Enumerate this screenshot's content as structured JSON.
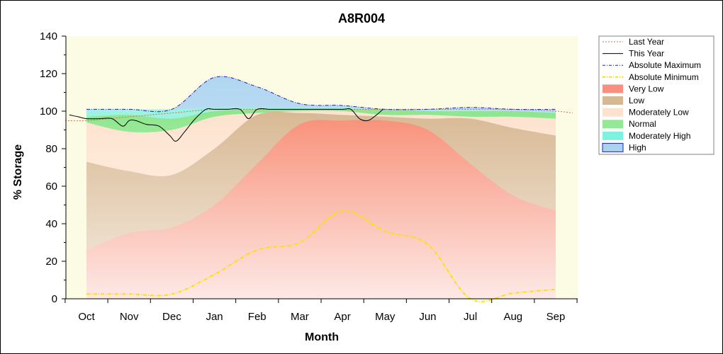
{
  "chart_data": {
    "type": "area",
    "title": "A8R004",
    "xlabel": "Month",
    "ylabel": "% Storage",
    "ylim": [
      0,
      140
    ],
    "yticks": [
      0,
      20,
      40,
      60,
      80,
      100,
      120,
      140
    ],
    "categories": [
      "Oct",
      "Nov",
      "Dec",
      "Jan",
      "Feb",
      "Mar",
      "Apr",
      "May",
      "Jun",
      "Jul",
      "Aug",
      "Sep"
    ],
    "x": [
      0,
      1,
      2,
      3,
      4,
      5,
      6,
      7,
      8,
      9,
      10,
      11
    ],
    "bands": {
      "very_low_top": [
        26,
        35,
        38,
        50,
        72,
        93,
        95,
        95,
        90,
        72,
        55,
        47
      ],
      "low_top": [
        73,
        68,
        66,
        80,
        98,
        99,
        98,
        97,
        96,
        96,
        91,
        87
      ],
      "moderately_low_top": [
        94,
        89,
        90,
        97,
        99,
        100,
        100,
        98,
        98,
        97,
        97,
        96
      ],
      "normal_top": [
        97,
        98,
        96,
        100,
        101,
        101,
        101,
        101,
        100,
        100,
        100,
        99
      ],
      "moderately_high_top": [
        101,
        101,
        101,
        102,
        102,
        102,
        102,
        101,
        101,
        101,
        100,
        100
      ],
      "high_top": [
        101,
        101,
        101,
        118,
        113,
        104,
        103,
        101,
        101,
        102,
        101,
        101
      ]
    },
    "series": [
      {
        "name": "Last Year",
        "x": [
          -0.5,
          0,
          1,
          2,
          3,
          4,
          5,
          6,
          7,
          8,
          9,
          10,
          11,
          11.4
        ],
        "values": [
          95,
          95,
          97,
          99,
          101,
          101,
          101,
          101,
          101,
          101,
          101,
          101,
          100,
          99
        ],
        "color": "#c87050",
        "style": "dotted"
      },
      {
        "name": "This Year",
        "x": [
          -0.4,
          -0.2,
          0,
          0.3,
          0.6,
          0.85,
          1.0,
          1.15,
          1.4,
          1.7,
          1.95,
          2.1,
          2.3,
          2.55,
          2.8,
          3.0,
          3.3,
          3.6,
          3.8,
          4.0,
          4.3,
          4.6,
          5.0,
          5.5,
          6.0,
          6.2,
          6.4,
          6.6,
          6.8,
          6.95
        ],
        "values": [
          98,
          97,
          96,
          96,
          96,
          92,
          95,
          95,
          93,
          92,
          87,
          84,
          89,
          96,
          101,
          101,
          101,
          101,
          96,
          101,
          101,
          101,
          101,
          101,
          101,
          101,
          96,
          95,
          98,
          101
        ],
        "color": "#000000",
        "style": "solid"
      },
      {
        "name": "Absolute Maximum",
        "x": [
          0,
          1,
          2,
          3,
          4,
          5,
          6,
          7,
          8,
          9,
          10,
          11
        ],
        "values": [
          101,
          101,
          101,
          118,
          113,
          104,
          103,
          101,
          101,
          102,
          101,
          101
        ],
        "color": "#2020c0",
        "style": "dashdot"
      },
      {
        "name": "Absolute Minimum",
        "x": [
          0,
          1,
          2,
          3,
          4,
          5,
          6,
          7,
          8,
          9,
          10,
          11
        ],
        "values": [
          2.5,
          2.5,
          2.5,
          13,
          26,
          30,
          47,
          36,
          29,
          0,
          3,
          5
        ],
        "color": "#ffe000",
        "style": "dashdot"
      }
    ],
    "legend": {
      "placement": "right",
      "items": [
        {
          "label": "Last Year",
          "type": "line",
          "color": "#c87050",
          "dash": "2,2"
        },
        {
          "label": "This Year",
          "type": "line",
          "color": "#000000",
          "dash": ""
        },
        {
          "label": "Absolute Maximum",
          "type": "line",
          "color": "#2020c0",
          "dash": "4,2,1,2"
        },
        {
          "label": "Absolute Minimum",
          "type": "line",
          "color": "#ffe000",
          "dash": "4,2,1,2"
        },
        {
          "label": "Very Low",
          "type": "box",
          "color": "#f79080"
        },
        {
          "label": "Low",
          "type": "box",
          "color": "#d6b893"
        },
        {
          "label": "Moderately Low",
          "type": "box",
          "color": "#fde3cf"
        },
        {
          "label": "Normal",
          "type": "box",
          "color": "#94ea94"
        },
        {
          "label": "Moderately High",
          "type": "box",
          "color": "#7ef2dc"
        },
        {
          "label": "High",
          "type": "box",
          "color": "#a9d4f0",
          "border": "#2020c0"
        }
      ]
    },
    "colors": {
      "plot_background": "#fcfce4",
      "very_low": "#f9a08c",
      "low": "#dcc2a3",
      "moderately_low": "#fde9d8",
      "normal": "#a6eca6",
      "moderately_high": "#9ef2e2",
      "high": "#b5daf0"
    }
  }
}
